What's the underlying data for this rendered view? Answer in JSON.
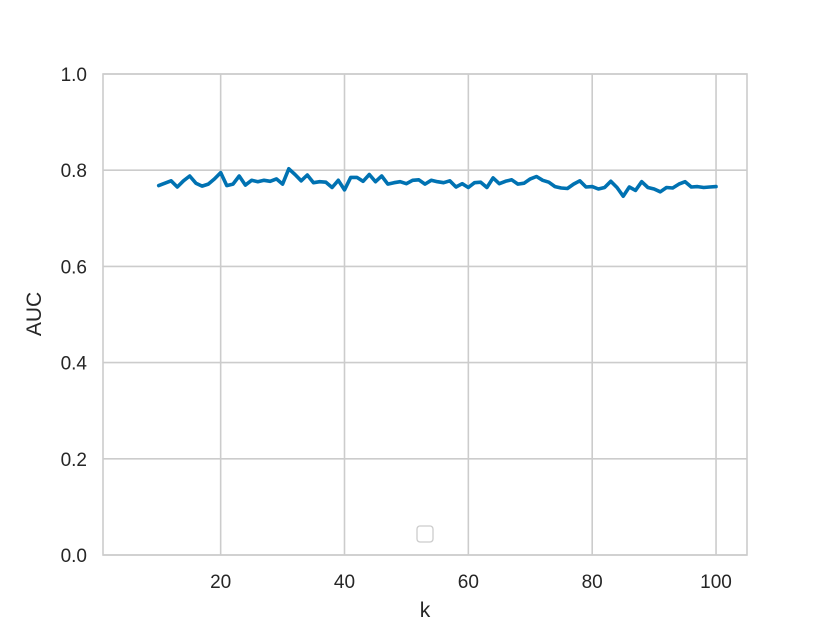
{
  "chart_data": {
    "type": "line",
    "title": "",
    "xlabel": "k",
    "ylabel": "AUC",
    "xlim": [
      1,
      105
    ],
    "ylim": [
      0.0,
      1.0
    ],
    "xticks": [
      20,
      40,
      60,
      80,
      100
    ],
    "xtick_labels": [
      "20",
      "40",
      "60",
      "80",
      "100"
    ],
    "yticks": [
      0.0,
      0.2,
      0.4,
      0.6,
      0.8,
      1.0
    ],
    "ytick_labels": [
      "0.0",
      "0.2",
      "0.4",
      "0.6",
      "0.8",
      "1.0"
    ],
    "grid": true,
    "legend": "lower-center, empty",
    "series": [
      {
        "color": "#0072b2",
        "x": [
          10,
          11,
          12,
          13,
          14,
          15,
          16,
          17,
          18,
          19,
          20,
          21,
          22,
          23,
          24,
          25,
          26,
          27,
          28,
          29,
          30,
          31,
          32,
          33,
          34,
          35,
          36,
          37,
          38,
          39,
          40,
          41,
          42,
          43,
          44,
          45,
          46,
          47,
          48,
          49,
          50,
          51,
          52,
          53,
          54,
          55,
          56,
          57,
          58,
          59,
          60,
          61,
          62,
          63,
          64,
          65,
          66,
          67,
          68,
          69,
          70,
          71,
          72,
          73,
          74,
          75,
          76,
          77,
          78,
          79,
          80,
          81,
          82,
          83,
          84,
          85,
          86,
          87,
          88,
          89,
          90,
          91,
          92,
          93,
          94,
          95,
          96,
          97,
          98,
          99,
          100
        ],
        "y": [
          0.768,
          0.773,
          0.778,
          0.765,
          0.778,
          0.788,
          0.773,
          0.767,
          0.771,
          0.782,
          0.795,
          0.768,
          0.771,
          0.788,
          0.769,
          0.779,
          0.776,
          0.779,
          0.777,
          0.782,
          0.771,
          0.803,
          0.791,
          0.778,
          0.79,
          0.774,
          0.776,
          0.775,
          0.764,
          0.779,
          0.759,
          0.785,
          0.785,
          0.777,
          0.791,
          0.776,
          0.788,
          0.771,
          0.774,
          0.776,
          0.772,
          0.779,
          0.78,
          0.771,
          0.779,
          0.776,
          0.774,
          0.778,
          0.765,
          0.772,
          0.764,
          0.774,
          0.775,
          0.764,
          0.784,
          0.772,
          0.777,
          0.78,
          0.771,
          0.773,
          0.782,
          0.787,
          0.779,
          0.775,
          0.766,
          0.763,
          0.762,
          0.771,
          0.778,
          0.765,
          0.766,
          0.761,
          0.764,
          0.777,
          0.764,
          0.746,
          0.765,
          0.758,
          0.776,
          0.764,
          0.761,
          0.755,
          0.764,
          0.763,
          0.771,
          0.776,
          0.765,
          0.766,
          0.764,
          0.765,
          0.766
        ]
      }
    ]
  }
}
